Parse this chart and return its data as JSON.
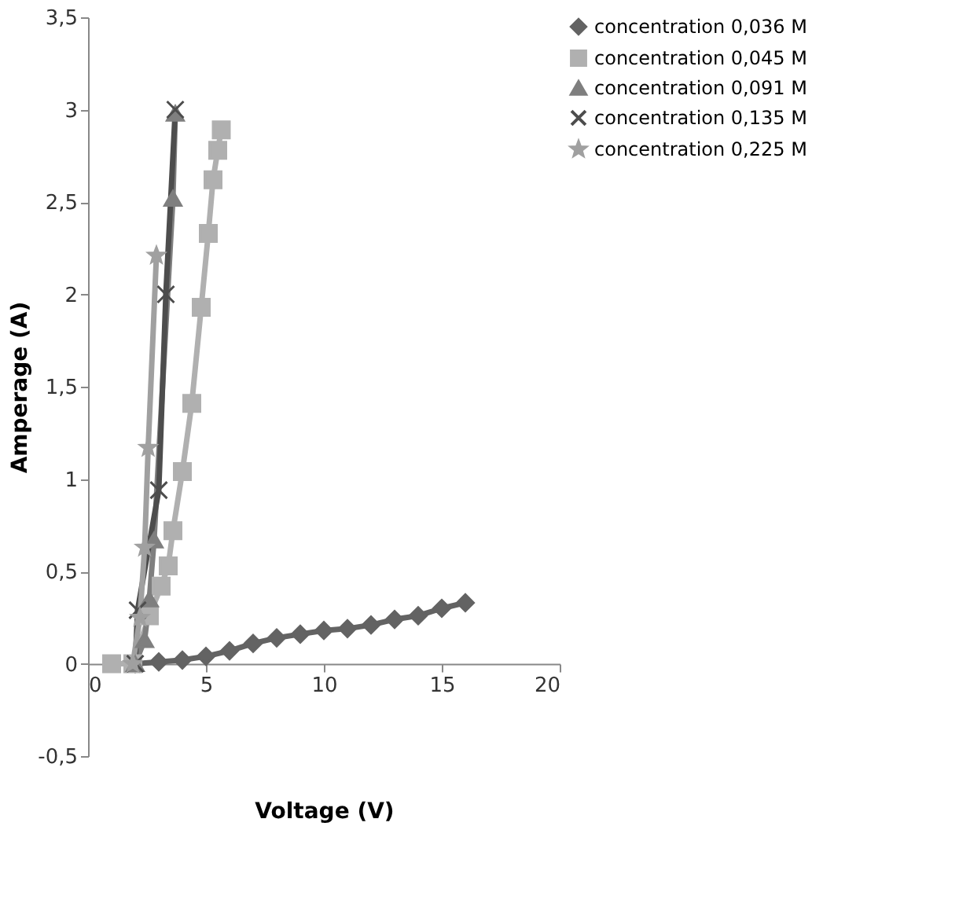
{
  "chart_data": {
    "type": "line",
    "xlabel": "Voltage (V)",
    "ylabel": "Amperage (A)",
    "xlim": [
      0,
      20
    ],
    "xticks": [
      0,
      5,
      10,
      15,
      20
    ],
    "ylim": [
      -0.5,
      3.5
    ],
    "yticks": [
      {
        "value": -0.5,
        "label": "-0,5"
      },
      0,
      {
        "value": 0.5,
        "label": "0,5"
      },
      1,
      {
        "value": 1.5,
        "label": "1,5"
      },
      2,
      {
        "value": 2.5,
        "label": "2,5"
      },
      3,
      {
        "value": 3.5,
        "label": "3,5"
      }
    ],
    "grid": false,
    "legend": "right",
    "series": [
      {
        "name": "concentration 0,036 M",
        "color": "#636363",
        "marker": "diamond",
        "x": [
          2,
          3,
          4,
          5,
          6,
          7,
          8,
          9,
          10,
          11,
          12,
          13,
          14,
          15,
          16
        ],
        "values": [
          0,
          0.01,
          0.02,
          0.04,
          0.07,
          0.11,
          0.14,
          0.16,
          0.18,
          0.19,
          0.21,
          0.24,
          0.26,
          0.3,
          0.33
        ]
      },
      {
        "name": "concentration 0,045 M",
        "color": "#b0b0b0",
        "marker": "square",
        "x": [
          1,
          1.9,
          2.6,
          3.1,
          3.4,
          3.6,
          4.0,
          4.4,
          4.8,
          5.1,
          5.3,
          5.5,
          5.65
        ],
        "values": [
          0,
          0,
          0.26,
          0.42,
          0.53,
          0.72,
          1.04,
          1.41,
          1.93,
          2.33,
          2.62,
          2.78,
          2.89
        ]
      },
      {
        "name": "concentration 0,091 M",
        "color": "#7f7f7f",
        "marker": "triangle",
        "x": [
          2,
          2.4,
          2.6,
          2.8,
          3.6,
          3.7
        ],
        "values": [
          0,
          0.13,
          0.35,
          0.67,
          2.52,
          2.98
        ]
      },
      {
        "name": "concentration 0,135 M",
        "color": "#4d4d4d",
        "marker": "cross",
        "x": [
          2,
          2.1,
          3,
          3.3,
          3.7
        ],
        "values": [
          0,
          0.29,
          0.94,
          2.0,
          3.0
        ]
      },
      {
        "name": "concentration 0,225 M",
        "color": "#a0a0a0",
        "marker": "star",
        "x": [
          1.9,
          2.2,
          2.4,
          2.55,
          2.9
        ],
        "values": [
          0,
          0.25,
          0.63,
          1.17,
          2.21
        ]
      }
    ]
  }
}
